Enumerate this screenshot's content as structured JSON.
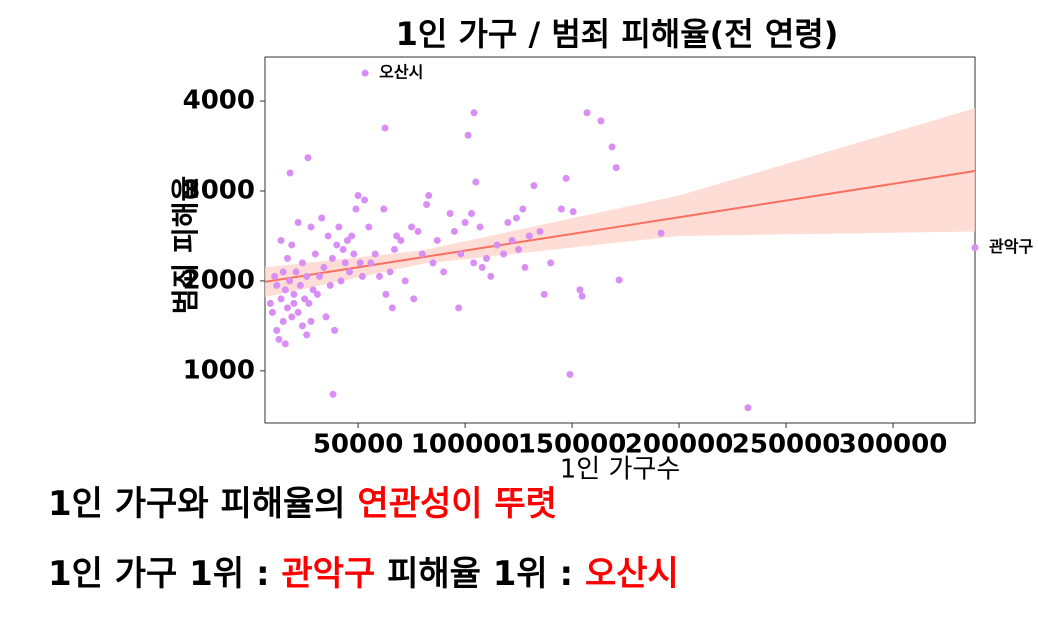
{
  "chart_data": {
    "type": "scatter",
    "title": "1인 가구 / 범죄 피해율(전 연령)",
    "xlabel": "1인 가구수",
    "ylabel": "범죄 피해율",
    "color": "#d88ef5",
    "xlim": [
      6500,
      338300
    ],
    "ylim": [
      420,
      4490
    ],
    "xticks": [
      50000,
      100000,
      150000,
      200000,
      250000,
      300000
    ],
    "yticks": [
      1000,
      2000,
      3000,
      4000
    ],
    "x": [
      9000,
      10000,
      11000,
      12000,
      12000,
      13000,
      14000,
      14000,
      15000,
      15000,
      16000,
      16000,
      17000,
      17000,
      18000,
      19000,
      19000,
      20000,
      20000,
      21000,
      22000,
      22000,
      23000,
      24000,
      24000,
      25000,
      26000,
      26000,
      27000,
      28000,
      28000,
      29000,
      30000,
      31000,
      32000,
      33000,
      34000,
      35000,
      36000,
      37000,
      38000,
      39000,
      40000,
      41000,
      42000,
      43000,
      44000,
      45000,
      46000,
      47000,
      48000,
      49000,
      50000,
      51000,
      52000,
      53000,
      55000,
      56000,
      58000,
      60000,
      62000,
      63000,
      65000,
      66000,
      67000,
      68000,
      70000,
      72000,
      75000,
      76000,
      78000,
      80000,
      82000,
      83000,
      85000,
      87000,
      90000,
      93000,
      95000,
      97000,
      98000,
      100000,
      103000,
      104000,
      105000,
      107000,
      108000,
      110000,
      112000,
      115000,
      118000,
      120000,
      122000,
      124000,
      125000,
      127000,
      128000,
      130000,
      135000,
      137000,
      140000,
      145000,
      149000,
      232200,
      38300,
      62600,
      104200,
      101400,
      157000,
      163500,
      168700,
      170600,
      26600,
      18200,
      191600,
      172000,
      150500,
      153700,
      154700,
      147200,
      132200,
      53300,
      338300
    ],
    "values": [
      1750,
      1650,
      2050,
      1450,
      1950,
      1350,
      1800,
      2450,
      1550,
      2100,
      1300,
      1900,
      1700,
      2250,
      2000,
      1600,
      2400,
      1850,
      1750,
      2100,
      1650,
      2650,
      1950,
      1500,
      2200,
      1800,
      2050,
      1400,
      1750,
      2600,
      1550,
      1900,
      2300,
      1850,
      2050,
      2700,
      2150,
      1600,
      2500,
      1950,
      2250,
      1450,
      2400,
      2600,
      2000,
      2350,
      2200,
      2450,
      2100,
      2500,
      2300,
      2800,
      2950,
      2200,
      2050,
      2900,
      2600,
      2200,
      2300,
      2050,
      2800,
      1850,
      2100,
      1700,
      2350,
      2500,
      2450,
      2000,
      2600,
      1800,
      2550,
      2300,
      2850,
      2950,
      2200,
      2450,
      2100,
      2750,
      2550,
      1700,
      2300,
      2650,
      2750,
      2200,
      3100,
      2600,
      2150,
      2250,
      2050,
      2400,
      2300,
      2650,
      2450,
      2700,
      2350,
      2800,
      2150,
      2500,
      2550,
      1850,
      2200,
      2800,
      960,
      590,
      740,
      3700,
      3870,
      3620,
      3870,
      3780,
      3490,
      3260,
      3370,
      3200,
      2530,
      2010,
      2770,
      1900,
      1830,
      3140,
      3060,
      4310,
      2370
    ],
    "regression": {
      "color": "#f87060",
      "band_color": "#fcd5cc",
      "x": [
        6500,
        80000,
        200000,
        338300
      ],
      "values": [
        1990,
        2263,
        2708,
        3222
      ],
      "lower": [
        1820,
        2190,
        2500,
        2550
      ],
      "upper": [
        2150,
        2340,
        2950,
        3920
      ]
    },
    "annotations": [
      {
        "text": "오산시",
        "x": 53300,
        "y": 4310
      },
      {
        "text": "관악구",
        "x": 338300,
        "y": 2370
      }
    ]
  },
  "notes": [
    {
      "segments": [
        {
          "text": "1인 가구와 피해율의 ",
          "color": "#000000"
        },
        {
          "text": "연관성이 뚜렷",
          "color": "#ff0000"
        }
      ]
    },
    {
      "segments": [
        {
          "text": "1인 가구 1위 : ",
          "color": "#000000"
        },
        {
          "text": "관악구",
          "color": "#ff0000"
        },
        {
          "text": " 피해율 1위 : ",
          "color": "#000000"
        },
        {
          "text": "오산시",
          "color": "#ff0000"
        }
      ]
    }
  ]
}
